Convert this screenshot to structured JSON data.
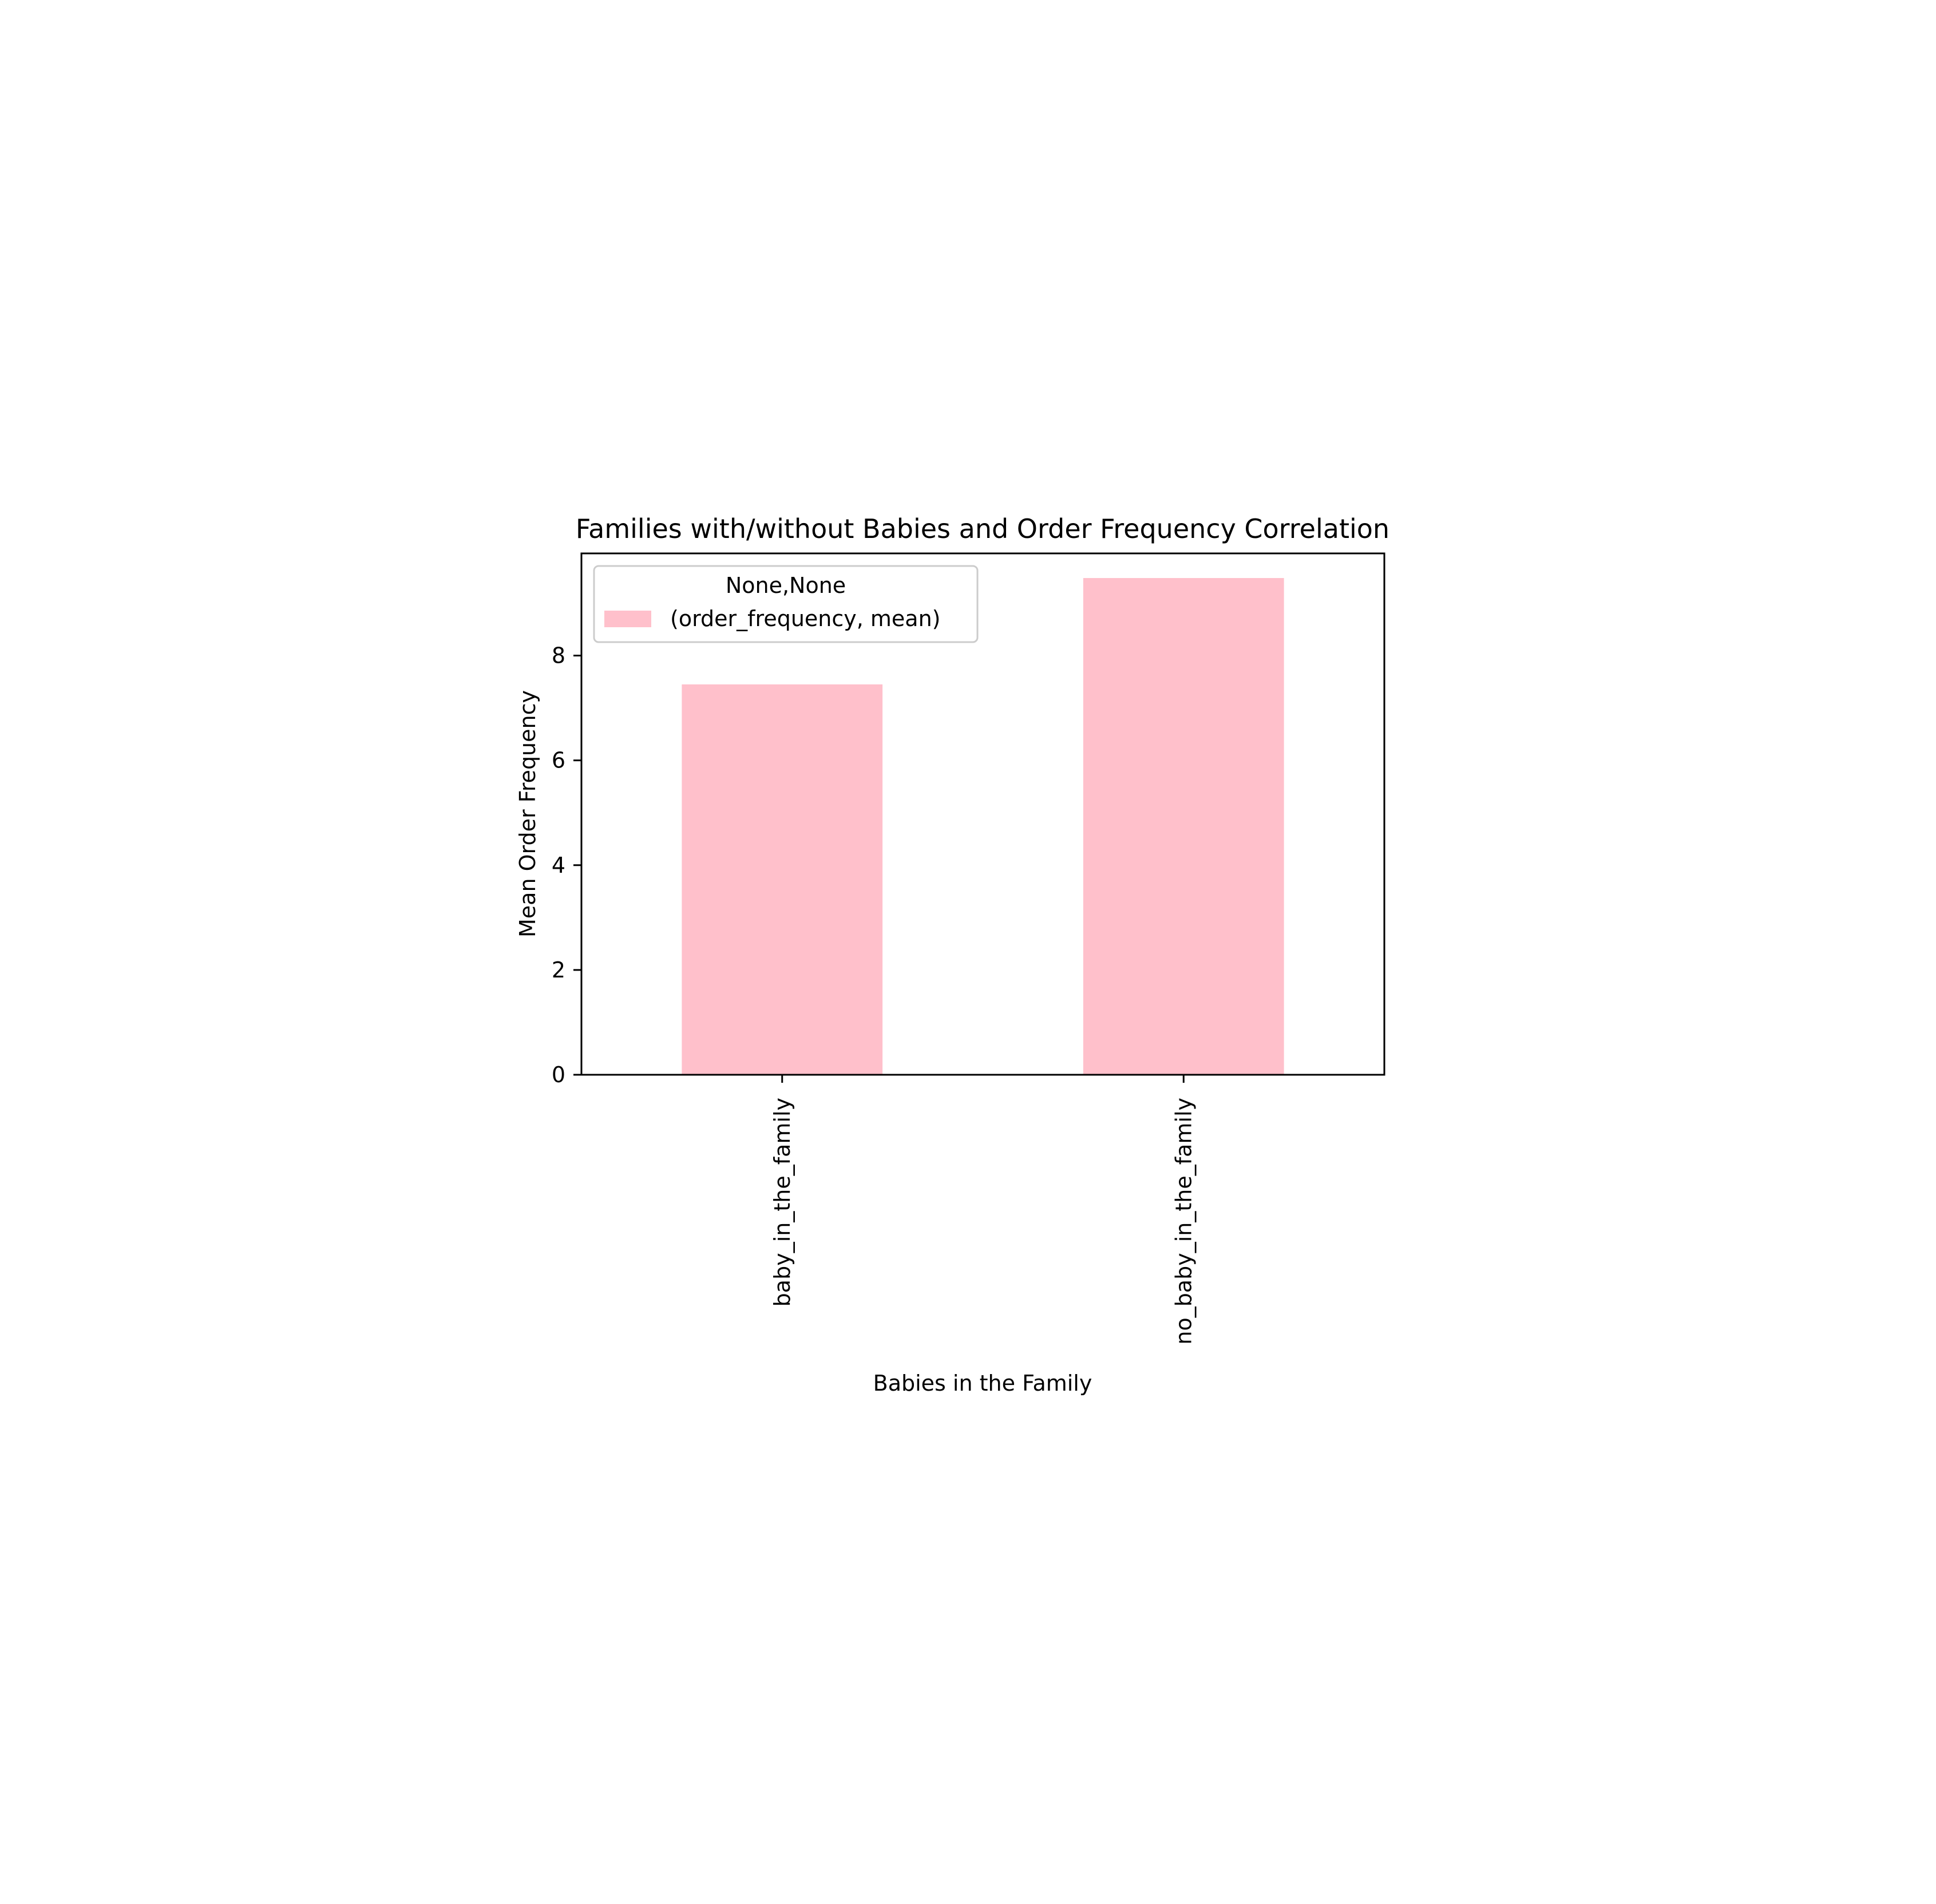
{
  "chart_data": {
    "type": "bar",
    "title": "Families with/without Babies and Order Frequency Correlation",
    "xlabel": "Babies in the Family",
    "ylabel": "Mean Order Frequency",
    "categories": [
      "baby_in_the_family",
      "no_baby_in_the_family"
    ],
    "series": [
      {
        "name": "(order_frequency, mean)",
        "values": [
          7.45,
          9.48
        ],
        "color": "#ffc0cb"
      }
    ],
    "legend": {
      "title": "None,None",
      "placement": "upper left"
    },
    "ylim": [
      0,
      9.95
    ],
    "yticks": [
      0,
      2,
      4,
      6,
      8
    ],
    "ytick_labels": [
      "0",
      "2",
      "4",
      "6",
      "8"
    ],
    "xtick_rotation": 90,
    "grid": false
  }
}
